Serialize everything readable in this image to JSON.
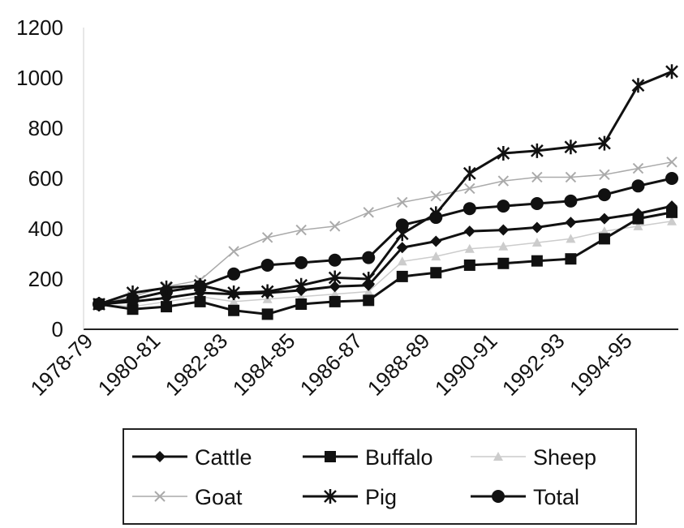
{
  "chart_data": {
    "type": "line",
    "title": "",
    "xlabel": "",
    "ylabel": "",
    "ylim": [
      0,
      1200
    ],
    "yticks": [
      "0",
      "200",
      "400",
      "600",
      "800",
      "1000",
      "1200"
    ],
    "categories": [
      "1978-79",
      "1979-80",
      "1980-81",
      "1981-82",
      "1982-83",
      "1983-84",
      "1984-85",
      "1985-86",
      "1986-87",
      "1987-88",
      "1988-89",
      "1989-90",
      "1990-91",
      "1991-92",
      "1992-93",
      "1993-94",
      "1994-95",
      "1995-96"
    ],
    "xtick_labels": [
      "1978-79",
      "1980-81",
      "1982-83",
      "1984-85",
      "1986-87",
      "1988-89",
      "1990-91",
      "1992-93",
      "1994-95"
    ],
    "legend_position": "bottom",
    "grid": false,
    "series": [
      {
        "name": "Cattle",
        "marker": "diamond",
        "color": "#111111",
        "values": [
          100,
          110,
          125,
          145,
          140,
          145,
          155,
          170,
          175,
          325,
          350,
          390,
          395,
          405,
          425,
          440,
          460,
          490
        ]
      },
      {
        "name": "Buffalo",
        "marker": "square",
        "color": "#111111",
        "values": [
          100,
          80,
          90,
          110,
          75,
          60,
          100,
          110,
          115,
          210,
          225,
          255,
          262,
          272,
          280,
          360,
          440,
          465
        ]
      },
      {
        "name": "Sheep",
        "marker": "triangle",
        "color": "#cccccc",
        "values": [
          100,
          90,
          110,
          130,
          110,
          120,
          130,
          140,
          150,
          270,
          290,
          320,
          330,
          345,
          360,
          390,
          410,
          430
        ]
      },
      {
        "name": "Goat",
        "marker": "x",
        "color": "#aaaaaa",
        "values": [
          100,
          130,
          170,
          195,
          310,
          365,
          395,
          410,
          465,
          505,
          530,
          560,
          590,
          605,
          605,
          615,
          640,
          665
        ]
      },
      {
        "name": "Pig",
        "marker": "asterisk",
        "color": "#111111",
        "values": [
          100,
          145,
          165,
          175,
          145,
          150,
          175,
          205,
          200,
          380,
          460,
          620,
          700,
          710,
          725,
          740,
          970,
          1025
        ]
      },
      {
        "name": "Total",
        "marker": "circle",
        "color": "#111111",
        "values": [
          100,
          120,
          150,
          170,
          220,
          255,
          265,
          275,
          285,
          415,
          445,
          480,
          490,
          500,
          510,
          535,
          570,
          600
        ]
      }
    ]
  }
}
